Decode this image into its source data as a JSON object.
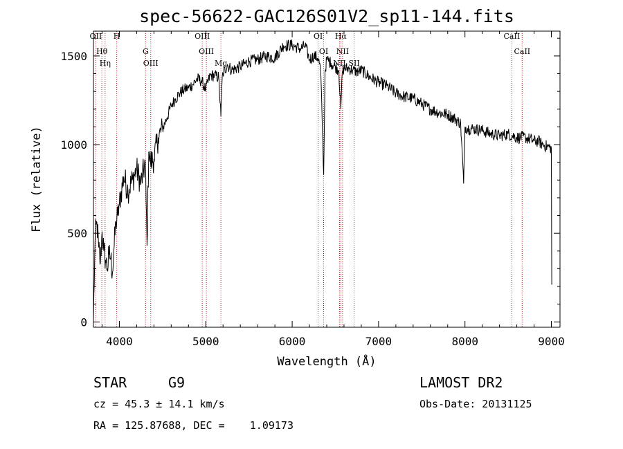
{
  "chart_data": {
    "type": "line",
    "title": "spec-56622-GAC126S01V2_sp11-144.fits",
    "xlabel": "Wavelength (Å)",
    "ylabel": "Flux (relative)",
    "xlim": [
      3700,
      9100
    ],
    "ylim": [
      -30,
      1640
    ],
    "xticks": [
      4000,
      5000,
      6000,
      7000,
      8000,
      9000
    ],
    "yticks": [
      0,
      500,
      1000,
      1500
    ],
    "grid": false,
    "line_color": "#000000",
    "marker_color": "#b22222",
    "series": [
      {
        "x": [
          3700,
          3720,
          3740,
          3760,
          3780,
          3800,
          3820,
          3840,
          3860,
          3880,
          3900,
          3920,
          3940,
          3960,
          3980,
          4000,
          4050,
          4100,
          4150,
          4200,
          4250,
          4300,
          4320,
          4340,
          4360,
          4400,
          4450,
          4500,
          4550,
          4600,
          4650,
          4700,
          4750,
          4800,
          4850,
          4900,
          4950,
          5000,
          5050,
          5100,
          5150,
          5175,
          5190,
          5200,
          5250,
          5300,
          5400,
          5500,
          5600,
          5700,
          5800,
          5900,
          6000,
          6100,
          6150,
          6200,
          6250,
          6300,
          6330,
          6365,
          6380,
          6400,
          6450,
          6500,
          6540,
          6563,
          6580,
          6600,
          6650,
          6700,
          6750,
          6800,
          6900,
          7000,
          7100,
          7200,
          7300,
          7400,
          7500,
          7600,
          7700,
          7800,
          7900,
          7950,
          7985,
          8000,
          8050,
          8100,
          8200,
          8300,
          8400,
          8500,
          8600,
          8700,
          8800,
          8850,
          8900,
          8950,
          9000,
          9005
        ],
        "y": [
          10,
          480,
          560,
          420,
          330,
          510,
          400,
          350,
          300,
          380,
          360,
          280,
          430,
          560,
          600,
          660,
          820,
          740,
          800,
          860,
          780,
          900,
          430,
          960,
          900,
          920,
          1040,
          1090,
          1150,
          1220,
          1260,
          1290,
          1310,
          1320,
          1340,
          1370,
          1360,
          1310,
          1390,
          1390,
          1380,
          1160,
          1380,
          1400,
          1450,
          1420,
          1440,
          1470,
          1480,
          1500,
          1490,
          1560,
          1560,
          1540,
          1560,
          1480,
          1500,
          1490,
          1420,
          830,
          1410,
          1480,
          1460,
          1440,
          1420,
          1200,
          1410,
          1430,
          1430,
          1420,
          1410,
          1420,
          1380,
          1350,
          1330,
          1290,
          1270,
          1260,
          1230,
          1200,
          1180,
          1170,
          1140,
          1120,
          780,
          1100,
          1090,
          1090,
          1080,
          1060,
          1050,
          1060,
          1040,
          1040,
          1020,
          1020,
          1000,
          990,
          980,
          210
        ]
      }
    ],
    "lines": [
      {
        "wl": 3727,
        "label": "OII"
      },
      {
        "wl": 3797,
        "label": "Hθ"
      },
      {
        "wl": 3835,
        "label": "Hη"
      },
      {
        "wl": 3969,
        "label": "H"
      },
      {
        "wl": 4304,
        "label": "G"
      },
      {
        "wl": 4363,
        "label": "OIII"
      },
      {
        "wl": 4959,
        "label": "OIII"
      },
      {
        "wl": 5007,
        "label": "OIII"
      },
      {
        "wl": 5175,
        "label": "Mg"
      },
      {
        "wl": 6300,
        "label": "OI"
      },
      {
        "wl": 6364,
        "label": "OI"
      },
      {
        "wl": 6548,
        "label": "NII"
      },
      {
        "wl": 6563,
        "label": "Hα"
      },
      {
        "wl": 6584,
        "label": "NII"
      },
      {
        "wl": 6717,
        "label": "SII"
      },
      {
        "wl": 8542,
        "label": "CaII"
      },
      {
        "wl": 8662,
        "label": "CaII"
      }
    ]
  },
  "info": {
    "class": "STAR",
    "subclass": "G9",
    "redshift": "cz = 45.3 ± 14.1 km/s",
    "coords": "RA = 125.87688, DEC =    1.09173",
    "survey": "LAMOST DR2",
    "obsdate": "Obs-Date: 20131125"
  }
}
